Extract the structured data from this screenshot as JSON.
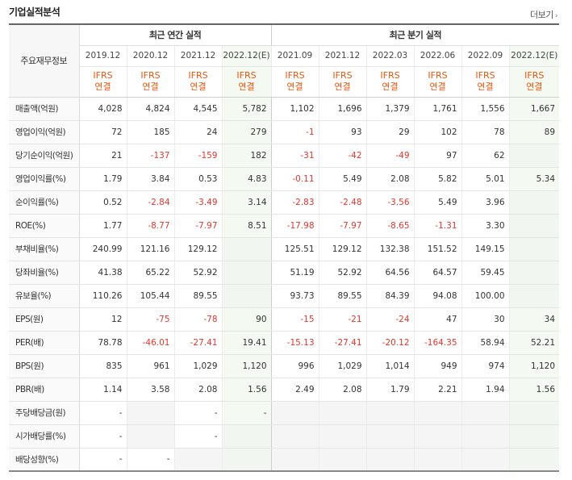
{
  "header": {
    "title": "기업실적분석",
    "more_label": "더보기",
    "chevron": "›"
  },
  "groups": {
    "annual": "최근 연간 실적",
    "quarterly": "최근 분기 실적"
  },
  "label_header": "주요재무정보",
  "periods": [
    "2019.12",
    "2020.12",
    "2021.12",
    "2022.12(E)",
    "2021.09",
    "2021.12",
    "2022.03",
    "2022.06",
    "2022.09",
    "2022.12(E)"
  ],
  "standard": {
    "line1": "IFRS",
    "line2": "연결"
  },
  "rows": [
    {
      "label": "매출액(억원)",
      "values": [
        "4,028",
        "4,824",
        "4,545",
        "5,782",
        "1,102",
        "1,696",
        "1,379",
        "1,761",
        "1,556",
        "1,667"
      ]
    },
    {
      "label": "영업이익(억원)",
      "values": [
        "72",
        "185",
        "24",
        "279",
        "-1",
        "93",
        "29",
        "102",
        "78",
        "89"
      ]
    },
    {
      "label": "당기순이익(억원)",
      "values": [
        "21",
        "-137",
        "-159",
        "182",
        "-31",
        "-42",
        "-49",
        "97",
        "62",
        ""
      ]
    },
    {
      "label": "영업이익률(%)",
      "values": [
        "1.79",
        "3.84",
        "0.53",
        "4.83",
        "-0.11",
        "5.49",
        "2.08",
        "5.82",
        "5.01",
        "5.34"
      ]
    },
    {
      "label": "순이익률(%)",
      "values": [
        "0.52",
        "-2.84",
        "-3.49",
        "3.14",
        "-2.83",
        "-2.48",
        "-3.56",
        "5.49",
        "3.96",
        ""
      ]
    },
    {
      "label": "ROE(%)",
      "values": [
        "1.77",
        "-8.77",
        "-7.97",
        "8.51",
        "-17.98",
        "-7.97",
        "-8.65",
        "-1.31",
        "3.30",
        ""
      ]
    },
    {
      "label": "부채비율(%)",
      "values": [
        "240.99",
        "121.16",
        "129.12",
        "",
        "125.51",
        "129.12",
        "132.38",
        "151.52",
        "149.15",
        ""
      ]
    },
    {
      "label": "당좌비율(%)",
      "values": [
        "41.38",
        "65.22",
        "52.92",
        "",
        "51.19",
        "52.92",
        "64.56",
        "64.57",
        "59.45",
        ""
      ]
    },
    {
      "label": "유보율(%)",
      "values": [
        "110.26",
        "105.44",
        "89.55",
        "",
        "93.73",
        "89.55",
        "84.39",
        "94.08",
        "100.00",
        ""
      ]
    },
    {
      "label": "EPS(원)",
      "values": [
        "12",
        "-75",
        "-78",
        "90",
        "-15",
        "-21",
        "-24",
        "47",
        "30",
        "34"
      ]
    },
    {
      "label": "PER(배)",
      "values": [
        "78.78",
        "-46.01",
        "-27.41",
        "19.41",
        "-15.13",
        "-27.41",
        "-20.12",
        "-164.35",
        "58.94",
        "52.21"
      ]
    },
    {
      "label": "BPS(원)",
      "values": [
        "835",
        "961",
        "1,029",
        "1,120",
        "996",
        "1,029",
        "1,014",
        "949",
        "974",
        "1,120"
      ]
    },
    {
      "label": "PBR(배)",
      "values": [
        "1.14",
        "3.58",
        "2.08",
        "1.56",
        "2.49",
        "2.08",
        "1.79",
        "2.21",
        "1.94",
        "1.56"
      ]
    },
    {
      "label": "주당배당금(원)",
      "values": [
        "-",
        "",
        "-",
        "-",
        "",
        "",
        "",
        "",
        "",
        ""
      ]
    },
    {
      "label": "시가배당률(%)",
      "values": [
        "-",
        "",
        "-",
        "",
        "",
        "",
        "",
        "",
        "",
        ""
      ]
    },
    {
      "label": "배당성향(%)",
      "values": [
        "-",
        "-",
        "",
        "",
        "",
        "",
        "",
        "",
        "",
        ""
      ]
    }
  ],
  "colors": {
    "negative": "#e8372e",
    "ifrs": "#e8560d",
    "estimate_bg": "#f4f9f2"
  }
}
